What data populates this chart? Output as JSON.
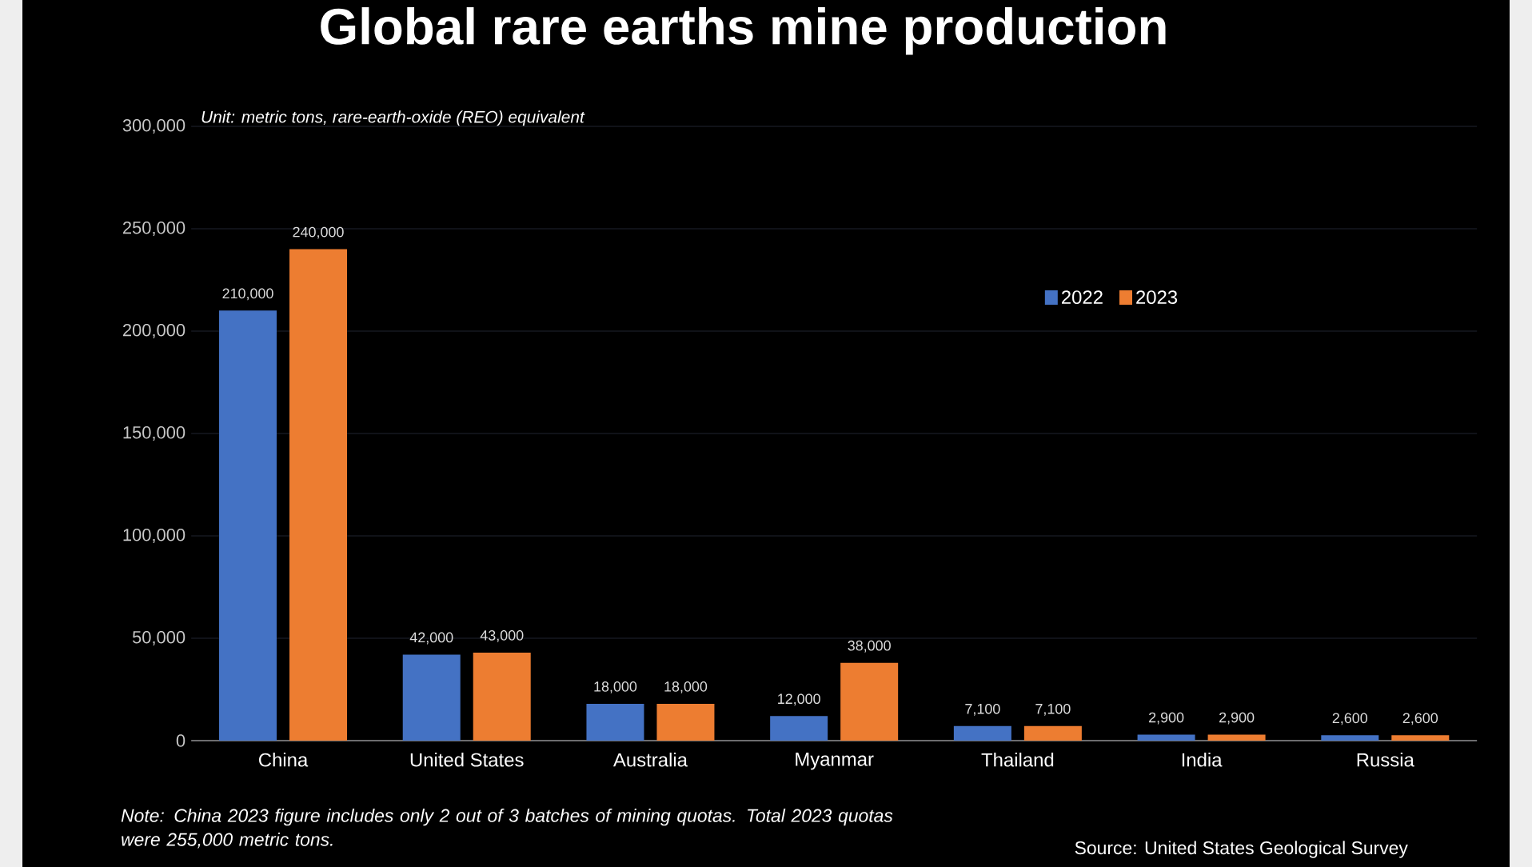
{
  "chart_data": {
    "type": "bar",
    "title": "Global rare earths mine production",
    "subtitle": "Unit: metric tons, rare-earth-oxide (REO) equivalent",
    "categories": [
      "China",
      "United States",
      "Australia",
      "Myanmar",
      "Thailand",
      "India",
      "Russia"
    ],
    "series": [
      {
        "name": "2022",
        "color": "#4472c4",
        "values": [
          210000,
          42000,
          18000,
          12000,
          7100,
          2900,
          2600
        ],
        "value_labels": [
          "210,000",
          "42,000",
          "18,000",
          "12,000",
          "7,100",
          "2,900",
          "2,600"
        ]
      },
      {
        "name": "2023",
        "color": "#ed7d31",
        "values": [
          240000,
          43000,
          18000,
          38000,
          7100,
          2900,
          2600
        ],
        "value_labels": [
          "240,000",
          "43,000",
          "18,000",
          "38,000",
          "7,100",
          "2,900",
          "2,600"
        ]
      }
    ],
    "ylim": [
      0,
      300000
    ],
    "yticks": [
      {
        "value": 0,
        "label": "0"
      },
      {
        "value": 50000,
        "label": "50,000"
      },
      {
        "value": 100000,
        "label": "100,000"
      },
      {
        "value": 150000,
        "label": "150,000"
      },
      {
        "value": 200000,
        "label": "200,000"
      },
      {
        "value": 250000,
        "label": "250,000"
      },
      {
        "value": 300000,
        "label": "300,000"
      }
    ],
    "grid": "y",
    "legend": "top right",
    "annotations": [
      "Note: China 2023 figure includes only 2 out of 3 batches of mining quotas. Total 2023 quotas were 255,000 metric tons.",
      "Source: United States Geological Survey"
    ]
  }
}
